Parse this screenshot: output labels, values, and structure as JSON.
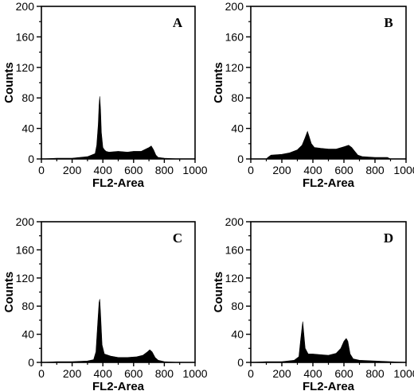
{
  "chart_data": [
    {
      "type": "area",
      "panel_label": "A",
      "xlabel": "FL2-Area",
      "ylabel": "Counts",
      "xlim": [
        0,
        1000
      ],
      "ylim": [
        0,
        200
      ],
      "x_ticks": [
        0,
        200,
        400,
        600,
        800,
        1000
      ],
      "y_ticks": [
        0,
        40,
        80,
        120,
        160,
        200
      ],
      "grid": false,
      "x": [
        0,
        100,
        200,
        300,
        350,
        360,
        370,
        375,
        380,
        385,
        390,
        400,
        410,
        420,
        440,
        500,
        560,
        600,
        650,
        680,
        700,
        715,
        730,
        745,
        760,
        800,
        900,
        1000
      ],
      "y": [
        0,
        1,
        1,
        3,
        7,
        18,
        45,
        70,
        82,
        65,
        35,
        15,
        12,
        10,
        9,
        10,
        9,
        10,
        10,
        13,
        15,
        17,
        12,
        5,
        2,
        1,
        0,
        0
      ]
    },
    {
      "type": "area",
      "panel_label": "B",
      "xlabel": "FL2-Area",
      "ylabel": "Counts",
      "xlim": [
        0,
        1000
      ],
      "ylim": [
        0,
        200
      ],
      "x_ticks": [
        0,
        200,
        400,
        600,
        800,
        1000
      ],
      "y_ticks": [
        0,
        40,
        80,
        120,
        160,
        200
      ],
      "grid": false,
      "x": [
        0,
        100,
        110,
        130,
        200,
        250,
        300,
        330,
        350,
        365,
        375,
        390,
        410,
        450,
        500,
        550,
        600,
        630,
        650,
        670,
        690,
        720,
        800,
        880,
        900,
        1000
      ],
      "y": [
        0,
        0,
        2,
        5,
        6,
        8,
        12,
        18,
        28,
        36,
        30,
        20,
        15,
        14,
        13,
        13,
        16,
        18,
        15,
        10,
        5,
        3,
        2,
        2,
        0,
        0
      ]
    },
    {
      "type": "area",
      "panel_label": "C",
      "xlabel": "FL2-Area",
      "ylabel": "Counts",
      "xlim": [
        0,
        1000
      ],
      "ylim": [
        0,
        200
      ],
      "x_ticks": [
        0,
        200,
        400,
        600,
        800,
        1000
      ],
      "y_ticks": [
        0,
        40,
        80,
        120,
        160,
        200
      ],
      "grid": false,
      "x": [
        0,
        100,
        200,
        300,
        340,
        355,
        365,
        375,
        380,
        385,
        395,
        410,
        450,
        500,
        560,
        620,
        660,
        690,
        705,
        720,
        740,
        760,
        800,
        900,
        1000
      ],
      "y": [
        0,
        1,
        1,
        2,
        4,
        15,
        50,
        85,
        90,
        70,
        25,
        12,
        9,
        7,
        7,
        8,
        10,
        15,
        18,
        15,
        7,
        3,
        1,
        0,
        0
      ]
    },
    {
      "type": "area",
      "panel_label": "D",
      "xlabel": "FL2-Area",
      "ylabel": "Counts",
      "xlim": [
        0,
        1000
      ],
      "ylim": [
        0,
        200
      ],
      "x_ticks": [
        0,
        200,
        400,
        600,
        800,
        1000
      ],
      "y_ticks": [
        0,
        40,
        80,
        120,
        160,
        200
      ],
      "grid": false,
      "x": [
        0,
        100,
        200,
        280,
        310,
        320,
        330,
        335,
        340,
        350,
        370,
        400,
        450,
        500,
        550,
        580,
        600,
        615,
        625,
        640,
        660,
        700,
        800,
        900,
        1000
      ],
      "y": [
        0,
        1,
        1,
        3,
        8,
        30,
        50,
        58,
        45,
        20,
        12,
        12,
        11,
        10,
        13,
        20,
        30,
        34,
        30,
        12,
        5,
        3,
        2,
        1,
        0
      ]
    }
  ]
}
